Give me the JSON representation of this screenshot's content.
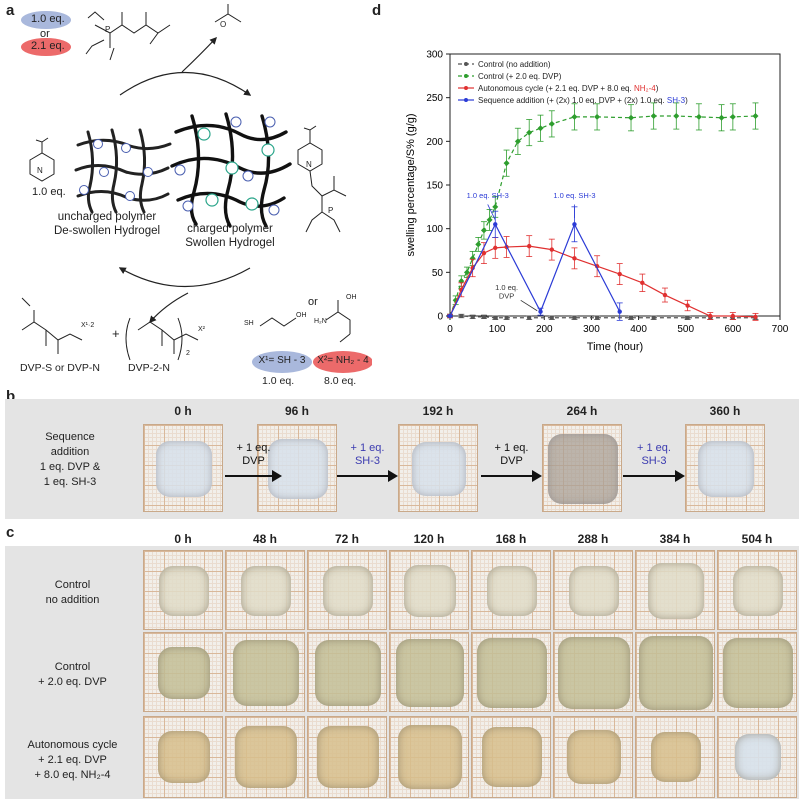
{
  "panel_labels": {
    "a": "a",
    "b": "b",
    "c": "c",
    "d": "d"
  },
  "scheme": {
    "eq_blue": "1.0 eq.",
    "or1": "or",
    "eq_red": "2.1 eq.",
    "one_eq": "1.0 eq.",
    "uncharged_1": "uncharged polymer",
    "uncharged_2": "De-swollen Hydrogel",
    "charged_1": "charged polymer",
    "charged_2": "Swollen Hydrogel",
    "dvp_s": "DVP-S  or  DVP-N",
    "dvp_2n": "DVP-2-N",
    "plus": "+",
    "or2": "or",
    "x1": "X¹= SH - 3",
    "x2": "X²= NH₂ - 4",
    "eq1": "1.0 eq.",
    "eq8": "8.0 eq.",
    "x12": "X¹·2",
    "x2s": "X²",
    "sub2": "2",
    "N": "N",
    "O": "O",
    "P": "P",
    "SH": "SH",
    "OH": "OH",
    "H2N": "H₂N",
    "colors": {
      "blue_oval": "#a9b8dc",
      "red_oval": "#ec6a6a",
      "teal": "#2aa58a"
    }
  },
  "panel_b": {
    "times": [
      "0 h",
      "96 h",
      "192 h",
      "264 h",
      "360 h"
    ],
    "row_label": [
      "Sequence",
      "addition",
      "1 eq. DVP &",
      "1 eq. SH-3"
    ],
    "steps": [
      {
        "line1": "+ 1 eq.",
        "line2": "DVP",
        "color": "#111111"
      },
      {
        "line1": "+ 1 eq.",
        "line2": "SH-3",
        "color": "#3b3bb0"
      },
      {
        "line1": "+ 1 eq.",
        "line2": "DVP",
        "color": "#111111"
      },
      {
        "line1": "+ 1 eq.",
        "line2": "SH-3",
        "color": "#3b3bb0"
      }
    ]
  },
  "panel_c": {
    "times": [
      "0 h",
      "48 h",
      "72 h",
      "120 h",
      "168 h",
      "288 h",
      "384 h",
      "504 h"
    ],
    "rows": [
      {
        "l1": "Control",
        "l2": "no addition",
        "l3": ""
      },
      {
        "l1": "Control",
        "l2": "+ 2.0 eq. DVP",
        "l3": ""
      },
      {
        "l1": "Autonomous cycle",
        "l2": "+ 2.1 eq. DVP",
        "l3": "+ 8.0 eq. NH₂-4"
      }
    ]
  },
  "chart_data": {
    "type": "line",
    "xlabel": "Time (hour)",
    "ylabel": "swelling percentage/S% (g/g)",
    "xlim": [
      0,
      700
    ],
    "ylim": [
      0,
      300
    ],
    "xticks": [
      "0",
      "100",
      "200",
      "300",
      "400",
      "500",
      "600",
      "700"
    ],
    "yticks": [
      "0",
      "50",
      "100",
      "150",
      "200",
      "250",
      "300"
    ],
    "legend_position": "top-left",
    "series": [
      {
        "name": "Control (no addition)",
        "color": "#555555",
        "style": "dashed",
        "marker": "square",
        "x": [
          0,
          24,
          48,
          72,
          96,
          120,
          168,
          216,
          264,
          312,
          384,
          432,
          504,
          552,
          600,
          648
        ],
        "y": [
          0,
          0,
          -1,
          -1,
          -2,
          -2,
          -2,
          -2,
          -2,
          -2,
          -2,
          -2,
          -2,
          -2,
          -2,
          -2
        ],
        "err": [
          2,
          2,
          2,
          2,
          2,
          2,
          2,
          2,
          2,
          2,
          2,
          2,
          2,
          2,
          2,
          2
        ]
      },
      {
        "name": "Control (+ 2.0 eq. DVP)",
        "color": "#2e9e2e",
        "style": "dashed",
        "marker": "diamond",
        "x": [
          0,
          12,
          24,
          36,
          48,
          60,
          72,
          84,
          96,
          120,
          144,
          168,
          192,
          216,
          264,
          312,
          384,
          432,
          480,
          528,
          576,
          600,
          648
        ],
        "y": [
          0,
          18,
          40,
          50,
          66,
          82,
          98,
          110,
          125,
          175,
          200,
          210,
          215,
          220,
          228,
          228,
          227,
          229,
          229,
          228,
          227,
          228,
          229
        ],
        "err": [
          2,
          5,
          6,
          6,
          8,
          8,
          10,
          12,
          12,
          15,
          15,
          15,
          15,
          15,
          15,
          15,
          15,
          15,
          15,
          15,
          15,
          15,
          15
        ]
      },
      {
        "name": "Autonomous cycle (+ 2.1 eq. DVP + 8.0 eq. NH₂-4)",
        "color": "#e03030",
        "style": "solid",
        "marker": "circle",
        "x": [
          0,
          24,
          48,
          72,
          96,
          120,
          168,
          216,
          264,
          312,
          360,
          408,
          456,
          504,
          552,
          600,
          648
        ],
        "y": [
          0,
          30,
          55,
          72,
          78,
          79,
          80,
          76,
          66,
          57,
          48,
          38,
          24,
          12,
          0,
          0,
          -1
        ],
        "err": [
          2,
          8,
          10,
          12,
          12,
          12,
          12,
          12,
          12,
          12,
          12,
          10,
          8,
          6,
          4,
          4,
          4
        ]
      },
      {
        "name": "Sequence addition (+ (2x) 1.0 eq. DVP + (2x) 1.0 eq. SH-3)",
        "color": "#2b3bd6",
        "style": "solid",
        "marker": "circle",
        "x": [
          0,
          96,
          192,
          264,
          360
        ],
        "y": [
          0,
          105,
          5,
          105,
          5
        ],
        "err": [
          1,
          15,
          4,
          20,
          10
        ]
      }
    ],
    "legend": [
      {
        "pre": "Control (no addition)",
        "hl": "",
        "post": ""
      },
      {
        "pre": "Control (+ 2.0 eq. DVP)",
        "hl": "",
        "post": ""
      },
      {
        "pre": "Autonomous cycle (+ 2.1 eq. DVP + 8.0 eq. ",
        "hl": "NH₂-4",
        "post": ")"
      },
      {
        "pre": "Sequence addition (+ (2x) 1.0 eq. DVP + (2x) 1.0 eq. ",
        "hl": "SH-3",
        "post": ")"
      }
    ],
    "annotations": [
      {
        "text": "1.0 eq. SH-3",
        "x": 80,
        "y": 135,
        "color": "#2b3bd6"
      },
      {
        "text": "1.0 eq. SH-3",
        "x": 264,
        "y": 135,
        "color": "#2b3bd6"
      },
      {
        "text": "1.0 eq.",
        "x": 120,
        "y": 30,
        "color": "#333333"
      },
      {
        "text": "DVP",
        "x": 120,
        "y": 20,
        "color": "#333333"
      }
    ]
  }
}
